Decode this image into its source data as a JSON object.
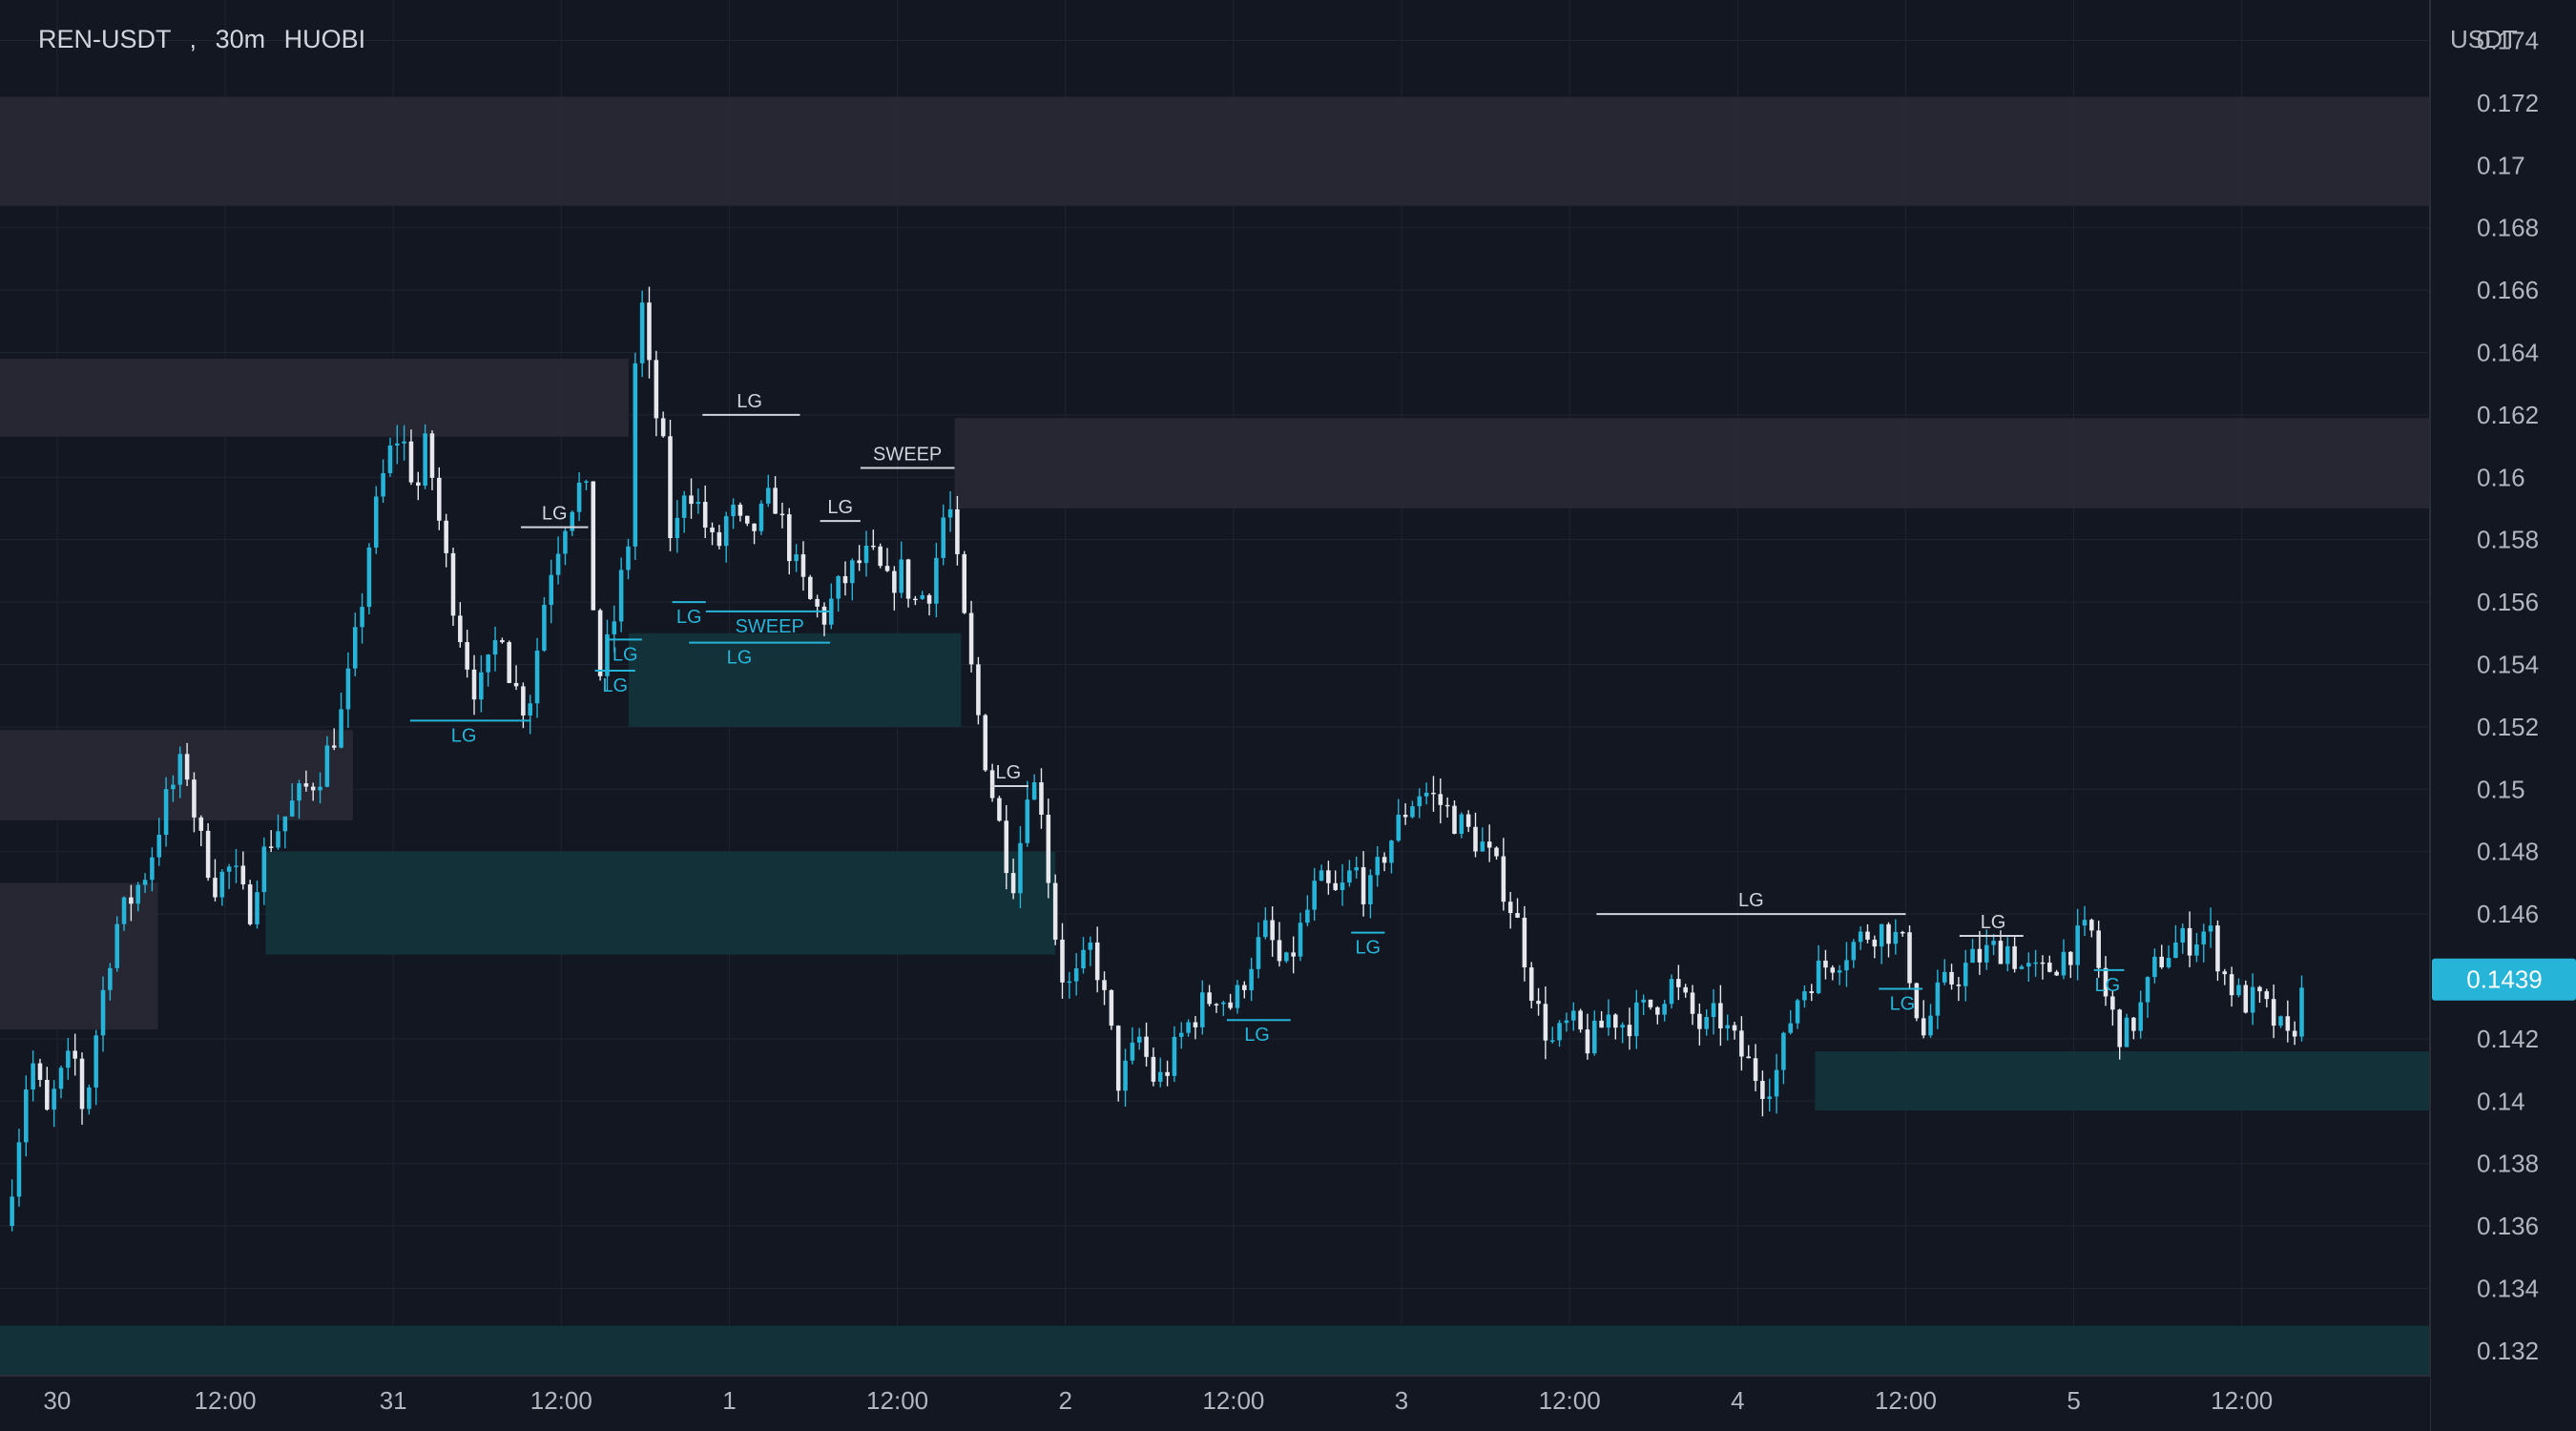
{
  "header": {
    "symbol": "REN-USDT",
    "separator": ",",
    "timeframe": "30m",
    "exchange": "HUOBI"
  },
  "colors": {
    "background": "#131722",
    "grid": "#1f2433",
    "bull": "#26b4d8",
    "bear": "#e6e8ee",
    "supply_zone": "#2a2835",
    "demand_zone": "#12333a",
    "label_white": "#d1d4dc",
    "label_cyan": "#26b4d8",
    "price_badge": "#26b4d8"
  },
  "chart_data": {
    "type": "candlestick",
    "quote_currency": "USDT",
    "current_price": 0.1439,
    "current_price_label": "0.1439",
    "y_ticks": [
      "0.174",
      "0.172",
      "0.17",
      "0.168",
      "0.166",
      "0.164",
      "0.162",
      "0.16",
      "0.158",
      "0.156",
      "0.154",
      "0.152",
      "0.15",
      "0.148",
      "0.146",
      "0.142",
      "0.14",
      "0.138",
      "0.136",
      "0.134",
      "0.132"
    ],
    "y_range": [
      0.1312,
      0.1753
    ],
    "x_range_days": [
      -0.17,
      7.06
    ],
    "x_ticks": [
      {
        "day": 0.0,
        "label": "30"
      },
      {
        "day": 0.5,
        "label": "12:00"
      },
      {
        "day": 1.0,
        "label": "31"
      },
      {
        "day": 1.5,
        "label": "12:00"
      },
      {
        "day": 2.0,
        "label": "1"
      },
      {
        "day": 2.5,
        "label": "12:00"
      },
      {
        "day": 3.0,
        "label": "2"
      },
      {
        "day": 3.5,
        "label": "12:00"
      },
      {
        "day": 4.0,
        "label": "3"
      },
      {
        "day": 4.5,
        "label": "12:00"
      },
      {
        "day": 5.0,
        "label": "4"
      },
      {
        "day": 5.5,
        "label": "12:00"
      },
      {
        "day": 6.0,
        "label": "5"
      },
      {
        "day": 6.5,
        "label": "12:00"
      }
    ],
    "candle_start_day": -0.155,
    "candle_interval_days": 0.020833,
    "path_anchors": [
      [
        -0.155,
        0.136
      ],
      [
        -0.12,
        0.1385
      ],
      [
        -0.08,
        0.1415
      ],
      [
        -0.03,
        0.1395
      ],
      [
        0.0,
        0.1405
      ],
      [
        0.05,
        0.1415
      ],
      [
        0.08,
        0.1395
      ],
      [
        0.12,
        0.1425
      ],
      [
        0.17,
        0.1455
      ],
      [
        0.22,
        0.1465
      ],
      [
        0.27,
        0.1475
      ],
      [
        0.32,
        0.1495
      ],
      [
        0.38,
        0.151
      ],
      [
        0.42,
        0.1485
      ],
      [
        0.47,
        0.147
      ],
      [
        0.52,
        0.1475
      ],
      [
        0.57,
        0.146
      ],
      [
        0.6,
        0.1475
      ],
      [
        0.64,
        0.1485
      ],
      [
        0.7,
        0.1495
      ],
      [
        0.78,
        0.1505
      ],
      [
        0.85,
        0.1525
      ],
      [
        0.9,
        0.1555
      ],
      [
        0.93,
        0.158
      ],
      [
        0.98,
        0.1605
      ],
      [
        1.02,
        0.1615
      ],
      [
        1.07,
        0.1595
      ],
      [
        1.1,
        0.1612
      ],
      [
        1.13,
        0.159
      ],
      [
        1.17,
        0.1565
      ],
      [
        1.21,
        0.1545
      ],
      [
        1.25,
        0.153
      ],
      [
        1.29,
        0.154
      ],
      [
        1.32,
        0.1555
      ],
      [
        1.35,
        0.1535
      ],
      [
        1.4,
        0.1525
      ],
      [
        1.46,
        0.1568
      ],
      [
        1.52,
        0.159
      ],
      [
        1.57,
        0.16
      ],
      [
        1.61,
        0.1535
      ],
      [
        1.65,
        0.155
      ],
      [
        1.7,
        0.158
      ],
      [
        1.73,
        0.1665
      ],
      [
        1.77,
        0.1625
      ],
      [
        1.8,
        0.1612
      ],
      [
        1.83,
        0.1575
      ],
      [
        1.87,
        0.16
      ],
      [
        1.91,
        0.159
      ],
      [
        1.96,
        0.1575
      ],
      [
        2.0,
        0.159
      ],
      [
        2.05,
        0.158
      ],
      [
        2.1,
        0.1588
      ],
      [
        2.13,
        0.1595
      ],
      [
        2.17,
        0.158
      ],
      [
        2.2,
        0.157
      ],
      [
        2.24,
        0.156
      ],
      [
        2.28,
        0.1555
      ],
      [
        2.33,
        0.1565
      ],
      [
        2.38,
        0.1572
      ],
      [
        2.42,
        0.1575
      ],
      [
        2.47,
        0.1565
      ],
      [
        2.51,
        0.157
      ],
      [
        2.55,
        0.156
      ],
      [
        2.6,
        0.1565
      ],
      [
        2.65,
        0.1595
      ],
      [
        2.69,
        0.156
      ],
      [
        2.73,
        0.153
      ],
      [
        2.77,
        0.1505
      ],
      [
        2.82,
        0.148
      ],
      [
        2.85,
        0.147
      ],
      [
        2.89,
        0.1505
      ],
      [
        2.93,
        0.1495
      ],
      [
        2.96,
        0.146
      ],
      [
        3.0,
        0.1435
      ],
      [
        3.04,
        0.144
      ],
      [
        3.08,
        0.145
      ],
      [
        3.13,
        0.1425
      ],
      [
        3.16,
        0.1405
      ],
      [
        3.22,
        0.142
      ],
      [
        3.27,
        0.1405
      ],
      [
        3.3,
        0.141
      ],
      [
        3.35,
        0.1422
      ],
      [
        3.4,
        0.143
      ],
      [
        3.45,
        0.1435
      ],
      [
        3.5,
        0.143
      ],
      [
        3.55,
        0.1445
      ],
      [
        3.6,
        0.1455
      ],
      [
        3.65,
        0.144
      ],
      [
        3.7,
        0.1455
      ],
      [
        3.75,
        0.147
      ],
      [
        3.81,
        0.1465
      ],
      [
        3.86,
        0.1475
      ],
      [
        3.9,
        0.1465
      ],
      [
        3.95,
        0.148
      ],
      [
        4.02,
        0.1495
      ],
      [
        4.06,
        0.15
      ],
      [
        4.12,
        0.1495
      ],
      [
        4.18,
        0.1488
      ],
      [
        4.24,
        0.1482
      ],
      [
        4.3,
        0.147
      ],
      [
        4.35,
        0.1455
      ],
      [
        4.4,
        0.143
      ],
      [
        4.45,
        0.1418
      ],
      [
        4.5,
        0.1425
      ],
      [
        4.56,
        0.1418
      ],
      [
        4.62,
        0.1428
      ],
      [
        4.66,
        0.1425
      ],
      [
        4.71,
        0.1428
      ],
      [
        4.76,
        0.1432
      ],
      [
        4.8,
        0.1438
      ],
      [
        4.85,
        0.143
      ],
      [
        4.9,
        0.1422
      ],
      [
        4.94,
        0.1428
      ],
      [
        4.98,
        0.142
      ],
      [
        5.03,
        0.1412
      ],
      [
        5.08,
        0.1405
      ],
      [
        5.12,
        0.141
      ],
      [
        5.17,
        0.1432
      ],
      [
        5.22,
        0.144
      ],
      [
        5.28,
        0.1445
      ],
      [
        5.34,
        0.145
      ],
      [
        5.4,
        0.1455
      ],
      [
        5.45,
        0.1455
      ],
      [
        5.5,
        0.1448
      ],
      [
        5.55,
        0.142
      ],
      [
        5.6,
        0.1435
      ],
      [
        5.65,
        0.144
      ],
      [
        5.7,
        0.1445
      ],
      [
        5.75,
        0.1448
      ],
      [
        5.8,
        0.145
      ],
      [
        5.85,
        0.1442
      ],
      [
        5.9,
        0.144
      ],
      [
        5.95,
        0.1445
      ],
      [
        6.0,
        0.145
      ],
      [
        6.05,
        0.1455
      ],
      [
        6.1,
        0.143
      ],
      [
        6.15,
        0.142
      ],
      [
        6.2,
        0.143
      ],
      [
        6.25,
        0.1445
      ],
      [
        6.3,
        0.145
      ],
      [
        6.35,
        0.1452
      ],
      [
        6.4,
        0.1455
      ],
      [
        6.45,
        0.144
      ],
      [
        6.5,
        0.1432
      ],
      [
        6.55,
        0.1432
      ],
      [
        6.6,
        0.1425
      ],
      [
        6.64,
        0.1418
      ],
      [
        6.67,
        0.143
      ],
      [
        6.69,
        0.1439
      ]
    ],
    "supply_zones": [
      {
        "from_day": -0.17,
        "to_day": 7.06,
        "top": 0.1722,
        "bottom": 0.1687
      },
      {
        "from_day": -0.17,
        "to_day": 1.7,
        "top": 0.1638,
        "bottom": 0.1613
      },
      {
        "from_day": 2.67,
        "to_day": 7.06,
        "top": 0.1619,
        "bottom": 0.159
      },
      {
        "from_day": -0.17,
        "to_day": 0.88,
        "top": 0.1519,
        "bottom": 0.149
      },
      {
        "from_day": -0.17,
        "to_day": 0.3,
        "top": 0.147,
        "bottom": 0.1423
      }
    ],
    "demand_zones": [
      {
        "from_day": 1.7,
        "to_day": 2.69,
        "top": 0.155,
        "bottom": 0.152
      },
      {
        "from_day": 0.62,
        "to_day": 2.97,
        "top": 0.148,
        "bottom": 0.1447
      },
      {
        "from_day": 5.23,
        "to_day": 7.06,
        "top": 0.1416,
        "bottom": 0.1397
      },
      {
        "from_day": -0.17,
        "to_day": 7.06,
        "top": 0.1328,
        "bottom": 0.1312
      }
    ],
    "level_labels": [
      {
        "text": "LG",
        "color": "white",
        "from_day": 1.38,
        "to_day": 1.58,
        "price": 0.1584,
        "text_day": 1.48
      },
      {
        "text": "LG",
        "color": "white",
        "from_day": 1.92,
        "to_day": 2.21,
        "price": 0.162,
        "text_day": 2.06
      },
      {
        "text": "LG",
        "color": "white",
        "from_day": 2.27,
        "to_day": 2.39,
        "price": 0.1586,
        "text_day": 2.33
      },
      {
        "text": "SWEEP",
        "color": "white",
        "from_day": 2.39,
        "to_day": 2.67,
        "price": 0.1603,
        "text_day": 2.53
      },
      {
        "text": "LG",
        "color": "white",
        "from_day": 4.58,
        "to_day": 5.5,
        "price": 0.146,
        "text_day": 5.04
      },
      {
        "text": "LG",
        "color": "white",
        "from_day": 5.66,
        "to_day": 5.85,
        "price": 0.1453,
        "text_day": 5.76
      },
      {
        "text": "LG",
        "color": "white",
        "from_day": 2.78,
        "to_day": 2.89,
        "price": 0.1501,
        "text_day": 2.83
      },
      {
        "text": "LG",
        "color": "cyan",
        "from_day": 1.05,
        "to_day": 1.41,
        "price": 0.1522,
        "text_day": 1.21
      },
      {
        "text": "LG",
        "color": "cyan",
        "from_day": 1.83,
        "to_day": 1.93,
        "price": 0.156,
        "text_day": 1.88
      },
      {
        "text": "SWEEP",
        "color": "cyan",
        "from_day": 1.93,
        "to_day": 2.3,
        "price": 0.1557,
        "text_day": 2.12
      },
      {
        "text": "LG",
        "color": "cyan",
        "from_day": 1.88,
        "to_day": 2.3,
        "price": 0.1547,
        "text_day": 2.03
      },
      {
        "text": "LG",
        "color": "cyan",
        "from_day": 1.64,
        "to_day": 1.74,
        "price": 0.1548,
        "text_day": 1.69
      },
      {
        "text": "LG",
        "color": "cyan",
        "from_day": 1.6,
        "to_day": 1.72,
        "price": 0.1538,
        "text_day": 1.66
      },
      {
        "text": "LG",
        "color": "cyan",
        "from_day": 3.48,
        "to_day": 3.67,
        "price": 0.1426,
        "text_day": 3.57
      },
      {
        "text": "LG",
        "color": "cyan",
        "from_day": 3.85,
        "to_day": 3.95,
        "price": 0.1454,
        "text_day": 3.9
      },
      {
        "text": "LG",
        "color": "cyan",
        "from_day": 5.42,
        "to_day": 5.55,
        "price": 0.1436,
        "text_day": 5.49
      },
      {
        "text": "LG",
        "color": "cyan",
        "from_day": 6.06,
        "to_day": 6.15,
        "price": 0.1442,
        "text_day": 6.1
      }
    ]
  }
}
